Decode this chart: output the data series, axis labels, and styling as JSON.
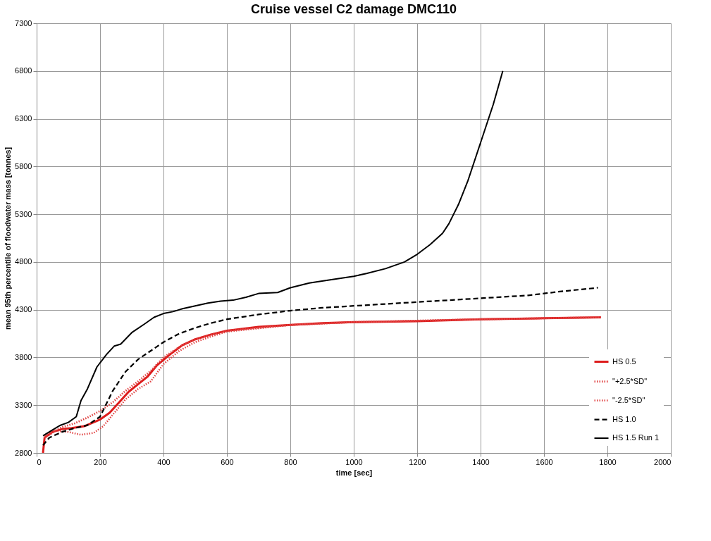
{
  "chart_data": {
    "type": "line",
    "title": "Cruise vessel C2 damage DMC110",
    "xlabel": "time [sec]",
    "ylabel": "mean 95th percentile of floodwater mass [tonnes]",
    "xlim": [
      0,
      2000
    ],
    "xticks": [
      0,
      200,
      400,
      600,
      800,
      1000,
      1200,
      1400,
      1600,
      1800,
      2000
    ],
    "ylim": [
      2800,
      7300
    ],
    "yticks": [
      2800,
      3300,
      3800,
      4300,
      4800,
      5300,
      5800,
      6300,
      6800,
      7300
    ],
    "grid": true,
    "legend": "bottom right",
    "marker": "none",
    "series": [
      {
        "name": "HS 0.5",
        "color": "#dd1c1c",
        "line_style": "solid",
        "x": [
          20,
          25,
          50,
          80,
          110,
          150,
          200,
          230,
          260,
          290,
          320,
          350,
          380,
          420,
          460,
          500,
          550,
          600,
          700,
          800,
          900,
          1000,
          1200,
          1400,
          1600,
          1780
        ],
        "values": [
          2800,
          2960,
          3020,
          3050,
          3060,
          3080,
          3150,
          3220,
          3330,
          3440,
          3520,
          3600,
          3720,
          3830,
          3930,
          3990,
          4040,
          4080,
          4120,
          4140,
          4160,
          4170,
          4180,
          4200,
          4210,
          4220
        ]
      },
      {
        "name": "\"+2.5*SD\"",
        "color": "#e04040",
        "line_style": "dotted",
        "x": [
          25,
          80,
          120,
          160,
          200,
          240,
          280,
          320,
          360,
          400,
          450,
          500,
          550,
          600,
          800,
          1000,
          1400,
          1780
        ],
        "values": [
          2980,
          3070,
          3110,
          3170,
          3240,
          3330,
          3450,
          3550,
          3660,
          3800,
          3910,
          3990,
          4040,
          4080,
          4140,
          4170,
          4200,
          4220
        ]
      },
      {
        "name": "\"-2.5*SD\"",
        "color": "#e04040",
        "line_style": "dotted",
        "x": [
          25,
          60,
          100,
          140,
          180,
          210,
          240,
          280,
          320,
          360,
          400,
          450,
          500,
          550,
          600,
          800,
          1000,
          1400,
          1780
        ],
        "values": [
          2960,
          3030,
          3020,
          2990,
          3010,
          3080,
          3200,
          3360,
          3470,
          3550,
          3730,
          3870,
          3960,
          4020,
          4070,
          4140,
          4170,
          4200,
          4220
        ]
      },
      {
        "name": "HS 1.0",
        "color": "#000000",
        "line_style": "dashed",
        "x": [
          20,
          40,
          80,
          120,
          160,
          200,
          240,
          280,
          320,
          360,
          400,
          450,
          500,
          550,
          600,
          700,
          800,
          900,
          1000,
          1200,
          1400,
          1550,
          1650,
          1770
        ],
        "values": [
          2880,
          2960,
          3020,
          3060,
          3090,
          3180,
          3450,
          3650,
          3780,
          3870,
          3960,
          4050,
          4110,
          4160,
          4200,
          4250,
          4290,
          4320,
          4340,
          4380,
          4420,
          4450,
          4490,
          4530
        ]
      },
      {
        "name": "HS 1.5 Run 1",
        "color": "#000000",
        "line_style": "solid",
        "x": [
          20,
          50,
          75,
          100,
          125,
          140,
          160,
          190,
          220,
          245,
          265,
          300,
          340,
          370,
          400,
          430,
          460,
          500,
          540,
          580,
          620,
          660,
          700,
          760,
          800,
          860,
          900,
          1000,
          1040,
          1100,
          1160,
          1200,
          1240,
          1280,
          1300,
          1330,
          1360,
          1400,
          1440,
          1470
        ],
        "values": [
          2980,
          3040,
          3090,
          3120,
          3180,
          3350,
          3470,
          3700,
          3830,
          3920,
          3940,
          4060,
          4150,
          4220,
          4260,
          4280,
          4310,
          4340,
          4370,
          4390,
          4400,
          4430,
          4470,
          4480,
          4530,
          4580,
          4600,
          4650,
          4680,
          4730,
          4800,
          4880,
          4980,
          5100,
          5200,
          5400,
          5650,
          6050,
          6450,
          6800
        ]
      }
    ]
  }
}
